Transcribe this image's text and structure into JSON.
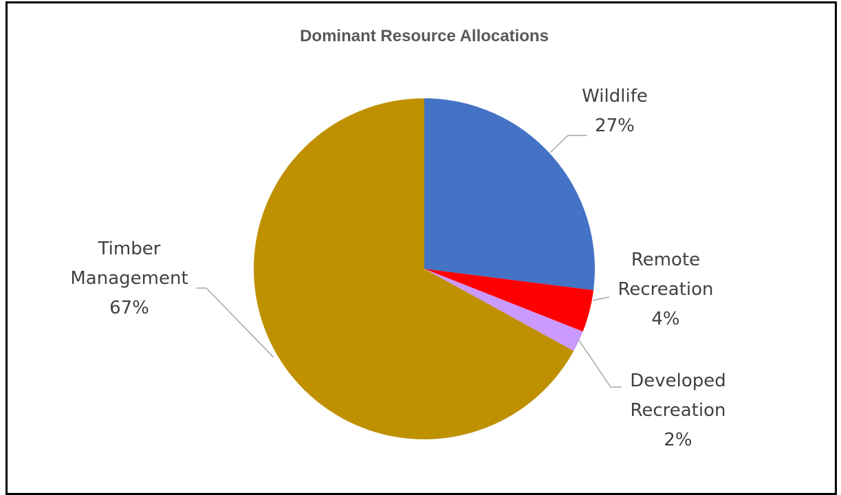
{
  "chart_data": {
    "type": "pie",
    "title": "Dominant Resource Allocations",
    "slices": [
      {
        "name": "Wildlife",
        "value": 27,
        "label_lines": [
          "Wildlife",
          "27%"
        ],
        "color": "#4472C4"
      },
      {
        "name": "Remote Recreation",
        "value": 4,
        "label_lines": [
          "Remote",
          "Recreation",
          "4%"
        ],
        "color": "#FF0000"
      },
      {
        "name": "Developed Recreation",
        "value": 2,
        "label_lines": [
          "Developed",
          "Recreation",
          "2%"
        ],
        "color": "#CC99FF"
      },
      {
        "name": "Timber Management",
        "value": 67,
        "label_lines": [
          "Timber",
          "Management",
          "67%"
        ],
        "color": "#BF9000"
      }
    ],
    "legend": "none",
    "data_labels": "outside with leader lines"
  }
}
